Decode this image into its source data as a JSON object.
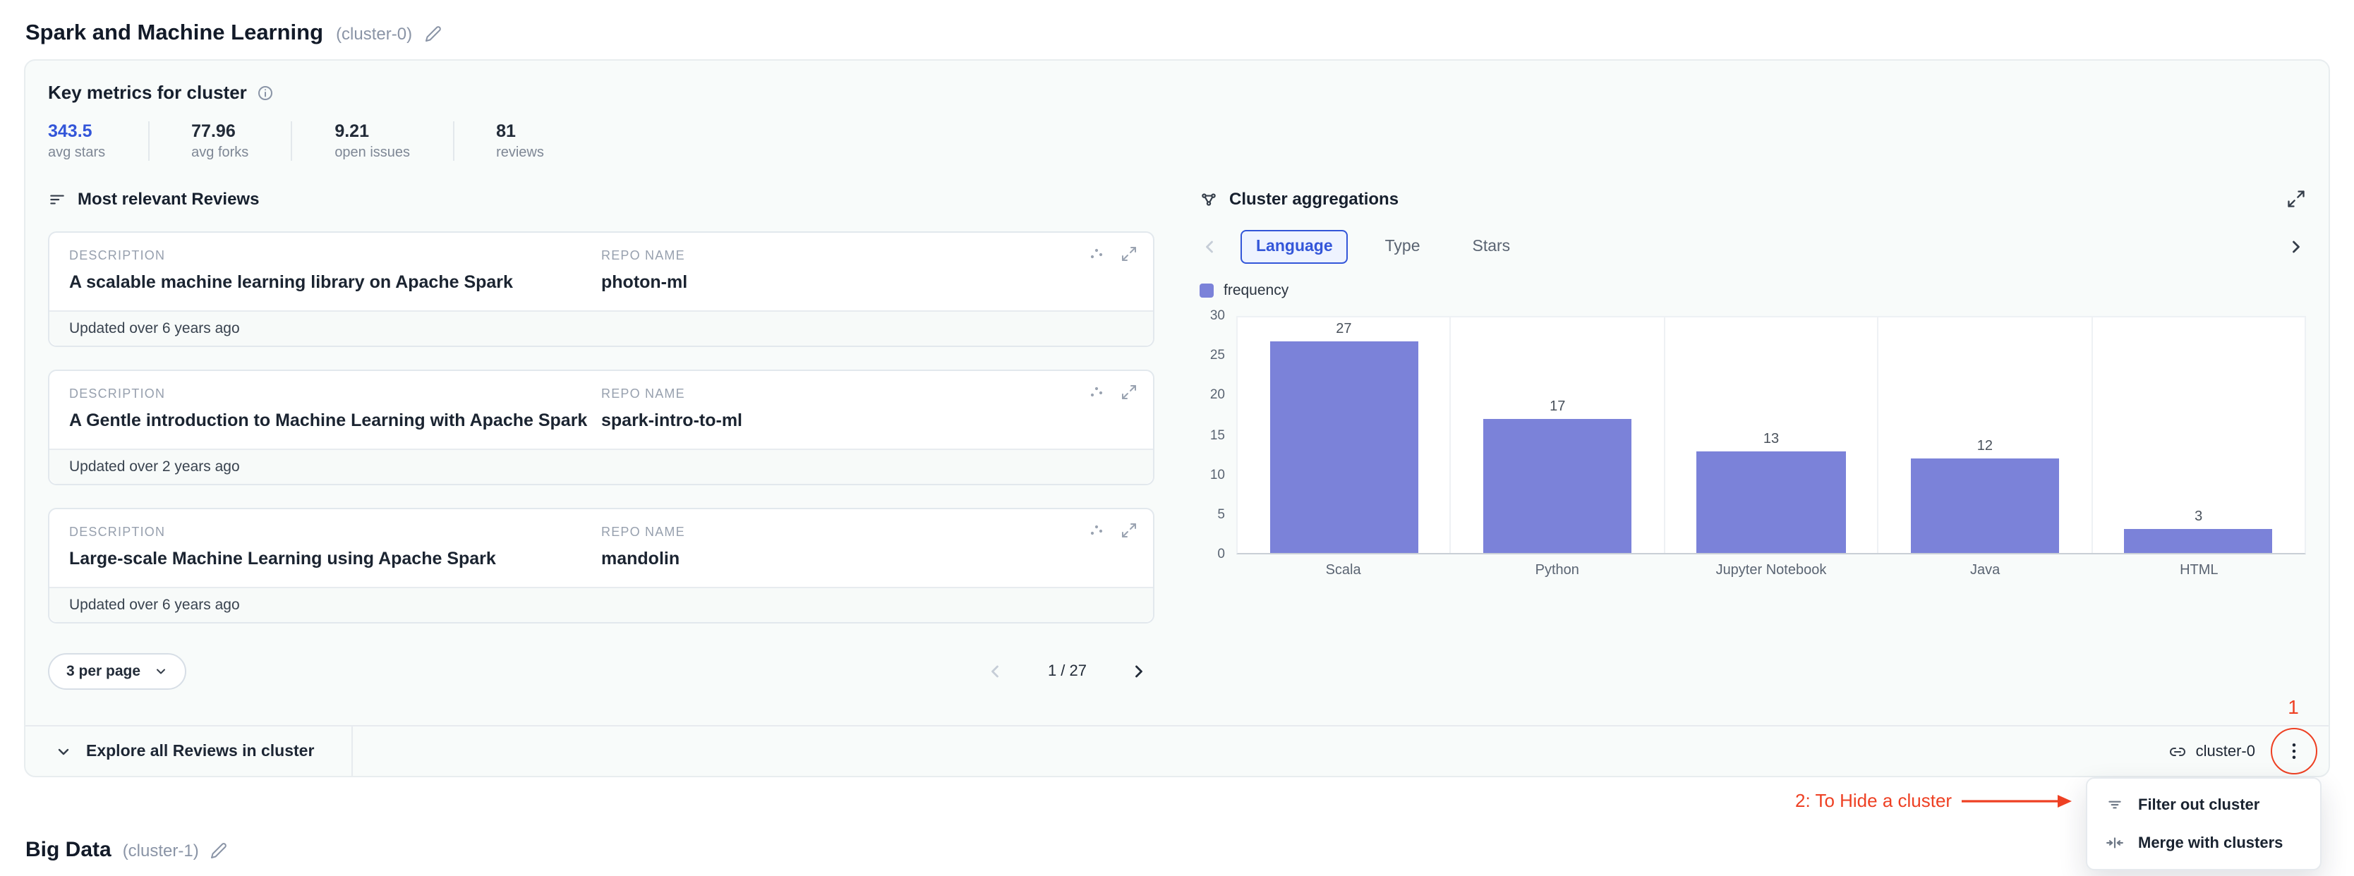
{
  "header": {
    "title": "Spark and Machine Learning",
    "cluster_tag": "(cluster-0)"
  },
  "metrics": {
    "heading": "Key metrics for cluster",
    "items": [
      {
        "value": "343.5",
        "label": "avg stars"
      },
      {
        "value": "77.96",
        "label": "avg forks"
      },
      {
        "value": "9.21",
        "label": "open issues"
      },
      {
        "value": "81",
        "label": "reviews"
      }
    ]
  },
  "reviews": {
    "heading": "Most relevant Reviews",
    "columns": {
      "description": "DESCRIPTION",
      "repo": "REPO NAME"
    },
    "items": [
      {
        "description": "A scalable machine learning library on Apache Spark",
        "repo_name": "photon-ml",
        "updated": "Updated over 6 years ago"
      },
      {
        "description": "A Gentle introduction to Machine Learning with Apache Spark",
        "repo_name": "spark-intro-to-ml",
        "updated": "Updated over 2 years ago"
      },
      {
        "description": "Large-scale Machine Learning using Apache Spark",
        "repo_name": "mandolin",
        "updated": "Updated over 6 years ago"
      }
    ],
    "pagination": {
      "per_page": "3 per page",
      "indicator": "1 / 27"
    }
  },
  "aggregations": {
    "heading": "Cluster aggregations",
    "tabs": [
      {
        "label": "Language",
        "selected": true
      },
      {
        "label": "Type",
        "selected": false
      },
      {
        "label": "Stars",
        "selected": false
      }
    ],
    "legend": "frequency"
  },
  "chart_data": {
    "type": "bar",
    "title": "Cluster aggregations",
    "categories": [
      "Scala",
      "Python",
      "Jupyter Notebook",
      "Java",
      "HTML"
    ],
    "values": [
      27,
      17,
      13,
      12,
      3
    ],
    "series_name": "frequency",
    "xlabel": "",
    "ylabel": "",
    "ylim": [
      0,
      30
    ],
    "yticks": [
      0,
      5,
      10,
      15,
      20,
      25,
      30
    ],
    "grid": "vertical-category-separators",
    "legend_position": "top-left",
    "bar_color": "#7b82d9"
  },
  "bottom_bar": {
    "explore_label": "Explore all Reviews in cluster",
    "cluster_link": "cluster-0"
  },
  "menu": {
    "items": [
      {
        "label": "Filter out cluster",
        "icon": "filter-icon"
      },
      {
        "label": "Merge with clusters",
        "icon": "merge-icon"
      }
    ]
  },
  "annotations": {
    "step1": "1",
    "step2": "2: To Hide a cluster",
    "color": "#ee4023"
  },
  "footer": {
    "title": "Big Data",
    "cluster_tag": "(cluster-1)"
  },
  "colors": {
    "accent": "#3356d9",
    "metric_highlight": "#3356d9",
    "card_background": "#f8fbfa",
    "bar": "#7b82d9",
    "annotation": "#ee4023"
  }
}
